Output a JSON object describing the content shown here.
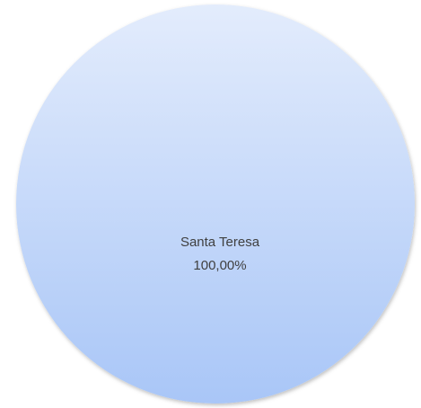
{
  "chart_data": {
    "type": "pie",
    "categories": [
      "Santa Teresa"
    ],
    "values": [
      100
    ],
    "value_labels": [
      "100,00%"
    ],
    "colors": [
      "#a9c6f7"
    ]
  }
}
